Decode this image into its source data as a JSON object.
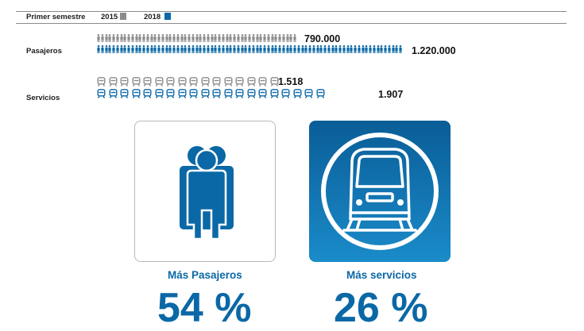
{
  "header": {
    "label": "Primer semestre",
    "legend_2015": "2015",
    "legend_2018": "2018"
  },
  "colors": {
    "gray": "#8b8b8b",
    "blue": "#0b68a6",
    "blue_light": "#1f8fcc",
    "text": "#1e1e1e"
  },
  "pasajeros": {
    "label": "Pasajeros",
    "value_2015": "790.000",
    "value_2018": "1.220.000",
    "count_2015": 790000,
    "count_2018": 1220000
  },
  "servicios": {
    "label": "Servicios",
    "value_2015": "1.518",
    "value_2018": "1.907",
    "count_2015": 1518,
    "count_2018": 1907
  },
  "panels": {
    "left": {
      "icon": "people-group-icon",
      "caption": "Más Pasajeros",
      "percent": "54 %"
    },
    "right": {
      "icon": "train-icon",
      "caption": "Más servicios",
      "percent": "26 %"
    }
  }
}
